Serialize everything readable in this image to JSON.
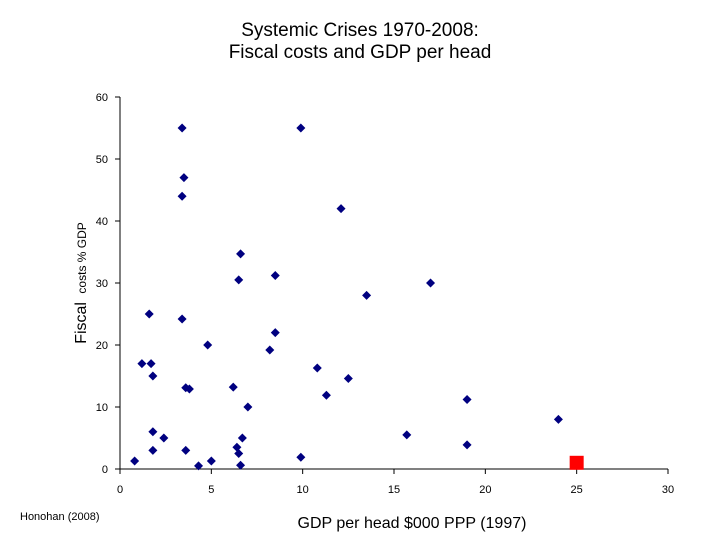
{
  "chart_data": {
    "type": "scatter",
    "title_line1": "Systemic Crises 1970-2008:",
    "title_line2": "Fiscal costs and GDP per head",
    "xlabel": "GDP per head $000 PPP (1997)",
    "ylabel_big": "Fiscal",
    "ylabel_small": "costs % GDP",
    "xlim": [
      0,
      30
    ],
    "ylim": [
      0,
      60
    ],
    "xticks": [
      "0",
      "5",
      "10",
      "15",
      "20",
      "25",
      "30"
    ],
    "yticks": [
      "0",
      "10",
      "20",
      "30",
      "40",
      "50",
      "60"
    ],
    "colors": {
      "points": "#000080",
      "highlight": "#ff0000"
    },
    "points": [
      {
        "x": 3.4,
        "y": 55
      },
      {
        "x": 9.9,
        "y": 55
      },
      {
        "x": 3.5,
        "y": 47
      },
      {
        "x": 3.4,
        "y": 44
      },
      {
        "x": 12.1,
        "y": 42
      },
      {
        "x": 6.6,
        "y": 34.7
      },
      {
        "x": 8.5,
        "y": 31.2
      },
      {
        "x": 6.5,
        "y": 30.5
      },
      {
        "x": 17.0,
        "y": 30
      },
      {
        "x": 13.5,
        "y": 28
      },
      {
        "x": 1.6,
        "y": 25
      },
      {
        "x": 3.4,
        "y": 24.2
      },
      {
        "x": 8.5,
        "y": 22
      },
      {
        "x": 4.8,
        "y": 20
      },
      {
        "x": 8.2,
        "y": 19.2
      },
      {
        "x": 1.2,
        "y": 17
      },
      {
        "x": 1.7,
        "y": 17
      },
      {
        "x": 1.8,
        "y": 15
      },
      {
        "x": 10.8,
        "y": 16.3
      },
      {
        "x": 12.5,
        "y": 14.6
      },
      {
        "x": 3.6,
        "y": 13.1
      },
      {
        "x": 3.8,
        "y": 12.9
      },
      {
        "x": 6.2,
        "y": 13.2
      },
      {
        "x": 11.3,
        "y": 11.9
      },
      {
        "x": 19.0,
        "y": 11.2
      },
      {
        "x": 7.0,
        "y": 10
      },
      {
        "x": 24.0,
        "y": 8
      },
      {
        "x": 1.8,
        "y": 6
      },
      {
        "x": 2.4,
        "y": 5
      },
      {
        "x": 6.7,
        "y": 5
      },
      {
        "x": 15.7,
        "y": 5.5
      },
      {
        "x": 19.0,
        "y": 3.9
      },
      {
        "x": 6.4,
        "y": 3.5
      },
      {
        "x": 1.8,
        "y": 3
      },
      {
        "x": 3.6,
        "y": 3
      },
      {
        "x": 6.5,
        "y": 2.5
      },
      {
        "x": 9.9,
        "y": 1.9
      },
      {
        "x": 0.8,
        "y": 1.3
      },
      {
        "x": 5.0,
        "y": 1.3
      },
      {
        "x": 4.3,
        "y": 0.5
      },
      {
        "x": 6.6,
        "y": 0.6
      }
    ],
    "highlight_point": {
      "x": 25.0,
      "y": 1
    }
  },
  "source": "Honohan (2008)"
}
